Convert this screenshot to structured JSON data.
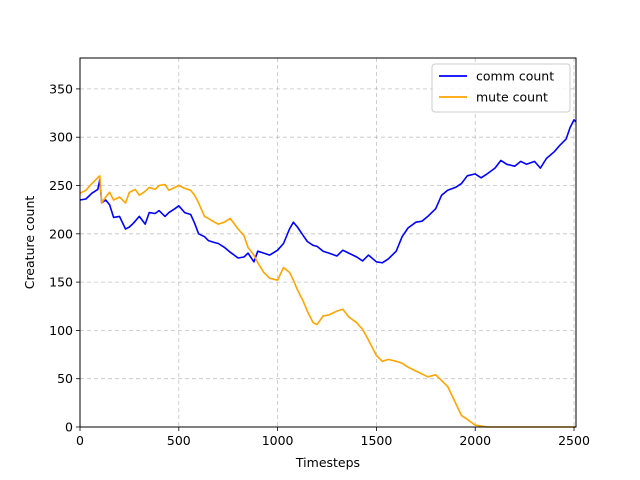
{
  "chart_data": {
    "type": "line",
    "xlabel": "Timesteps",
    "ylabel": "Creature count",
    "xlim": [
      0,
      2510
    ],
    "ylim": [
      0,
      382
    ],
    "xticks": [
      0,
      500,
      1000,
      1500,
      2000,
      2500
    ],
    "yticks": [
      0,
      50,
      100,
      150,
      200,
      250,
      300,
      350
    ],
    "grid": true,
    "legend_position": "top-right",
    "series": [
      {
        "name": "comm count",
        "color": "#0000ff",
        "x": [
          0,
          30,
          60,
          90,
          100,
          110,
          130,
          150,
          170,
          200,
          230,
          250,
          270,
          300,
          330,
          350,
          380,
          400,
          430,
          450,
          480,
          500,
          530,
          560,
          580,
          600,
          630,
          650,
          680,
          700,
          730,
          760,
          800,
          830,
          850,
          880,
          900,
          930,
          960,
          1000,
          1030,
          1060,
          1080,
          1100,
          1130,
          1150,
          1180,
          1200,
          1230,
          1260,
          1300,
          1330,
          1360,
          1400,
          1430,
          1460,
          1500,
          1530,
          1560,
          1600,
          1630,
          1660,
          1700,
          1730,
          1760,
          1800,
          1830,
          1860,
          1900,
          1930,
          1960,
          2000,
          2030,
          2060,
          2100,
          2130,
          2160,
          2200,
          2230,
          2260,
          2300,
          2330,
          2360,
          2400,
          2430,
          2460,
          2480,
          2500,
          2510
        ],
        "y": [
          235,
          236,
          242,
          246,
          256,
          232,
          235,
          230,
          217,
          218,
          205,
          207,
          211,
          218,
          210,
          222,
          221,
          224,
          218,
          222,
          226,
          229,
          222,
          220,
          211,
          200,
          197,
          193,
          191,
          190,
          186,
          181,
          175,
          176,
          180,
          171,
          182,
          180,
          178,
          183,
          190,
          205,
          212,
          207,
          198,
          192,
          188,
          187,
          182,
          180,
          177,
          183,
          180,
          176,
          172,
          178,
          171,
          170,
          174,
          182,
          197,
          206,
          212,
          213,
          218,
          226,
          240,
          245,
          248,
          252,
          260,
          262,
          258,
          262,
          268,
          276,
          272,
          270,
          275,
          272,
          275,
          268,
          278,
          285,
          292,
          298,
          310,
          318,
          316
        ]
      },
      {
        "name": "mute count",
        "color": "#ffa500",
        "x": [
          0,
          30,
          60,
          80,
          100,
          110,
          130,
          150,
          170,
          200,
          230,
          250,
          280,
          300,
          330,
          350,
          380,
          400,
          430,
          450,
          480,
          500,
          530,
          560,
          580,
          600,
          630,
          650,
          680,
          700,
          730,
          760,
          800,
          830,
          850,
          880,
          900,
          930,
          960,
          1000,
          1030,
          1060,
          1080,
          1100,
          1130,
          1150,
          1180,
          1200,
          1230,
          1260,
          1300,
          1330,
          1360,
          1400,
          1430,
          1460,
          1500,
          1530,
          1560,
          1600,
          1630,
          1660,
          1700,
          1730,
          1760,
          1800,
          1830,
          1860,
          1900,
          1930,
          1960,
          2000,
          2030,
          2060,
          2100,
          2200,
          2300,
          2400,
          2500,
          2510
        ],
        "y": [
          242,
          245,
          252,
          256,
          260,
          232,
          238,
          243,
          235,
          238,
          232,
          243,
          246,
          240,
          244,
          248,
          246,
          250,
          251,
          245,
          248,
          250,
          247,
          245,
          240,
          232,
          218,
          216,
          212,
          210,
          212,
          216,
          205,
          198,
          186,
          178,
          170,
          160,
          154,
          152,
          165,
          160,
          152,
          142,
          130,
          120,
          108,
          106,
          115,
          116,
          120,
          122,
          114,
          108,
          101,
          90,
          74,
          68,
          70,
          68,
          66,
          62,
          58,
          55,
          52,
          54,
          48,
          42,
          25,
          12,
          8,
          2,
          1,
          0,
          0,
          0,
          0,
          0,
          0,
          0
        ]
      }
    ]
  }
}
